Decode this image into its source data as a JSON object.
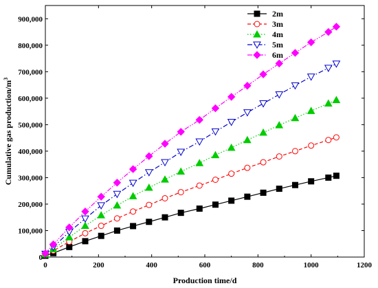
{
  "chart_data": {
    "type": "line",
    "xlabel": "Production time/d",
    "ylabel": "Cumulative gas production/m",
    "ylabel_superscript": "3",
    "xlim": [
      0,
      1200
    ],
    "ylim": [
      0,
      950000
    ],
    "xticks": [
      0,
      200,
      400,
      600,
      800,
      1000,
      1200
    ],
    "xtick_labels": [
      "0",
      "200",
      "400",
      "600",
      "800",
      "1000",
      "1200"
    ],
    "yticks": [
      0,
      100000,
      200000,
      300000,
      400000,
      500000,
      600000,
      700000,
      800000,
      900000
    ],
    "ytick_labels": [
      "0",
      "100,000",
      "200,000",
      "300,000",
      "400,000",
      "500,000",
      "600,000",
      "700,000",
      "800,000",
      "900,000"
    ],
    "grid": false,
    "legend_position": "top-right",
    "x": [
      0,
      30,
      90,
      150,
      210,
      270,
      330,
      390,
      450,
      510,
      580,
      640,
      700,
      760,
      820,
      880,
      940,
      1000,
      1065,
      1095
    ],
    "series": [
      {
        "name": "2m",
        "color": "#000000",
        "marker": "square",
        "line_style": "solid",
        "values": [
          5000,
          15000,
          38000,
          60000,
          80000,
          100000,
          117000,
          133000,
          150000,
          167000,
          183000,
          198000,
          213000,
          228000,
          243000,
          258000,
          272000,
          286000,
          300000,
          307000
        ]
      },
      {
        "name": "3m",
        "color": "#ff0000",
        "marker": "circle-open",
        "line_style": "dashed",
        "values": [
          8000,
          24000,
          58000,
          90000,
          118000,
          146000,
          172000,
          197000,
          222000,
          245000,
          270000,
          292000,
          315000,
          337000,
          358000,
          380000,
          400000,
          421000,
          442000,
          452000
        ]
      },
      {
        "name": "4m",
        "color": "#00cc00",
        "marker": "triangle-up",
        "line_style": "dotted",
        "values": [
          10000,
          30000,
          75000,
          118000,
          158000,
          195000,
          230000,
          262000,
          293000,
          323000,
          355000,
          385000,
          413000,
          442000,
          470000,
          498000,
          525000,
          552000,
          580000,
          593000
        ]
      },
      {
        "name": "5m",
        "color": "#0000cc",
        "marker": "triangle-down-open",
        "line_style": "dashdot",
        "values": [
          12000,
          38000,
          95000,
          145000,
          195000,
          238000,
          280000,
          320000,
          358000,
          397000,
          436000,
          474000,
          510000,
          546000,
          580000,
          614000,
          648000,
          681000,
          714000,
          730000
        ]
      },
      {
        "name": "6m",
        "color": "#ff00ff",
        "marker": "diamond",
        "line_style": "dashdotdot",
        "values": [
          14000,
          48000,
          112000,
          172000,
          228000,
          281000,
          332000,
          381000,
          428000,
          473000,
          518000,
          562000,
          605000,
          647000,
          690000,
          731000,
          771000,
          811000,
          850000,
          870000
        ]
      }
    ]
  }
}
